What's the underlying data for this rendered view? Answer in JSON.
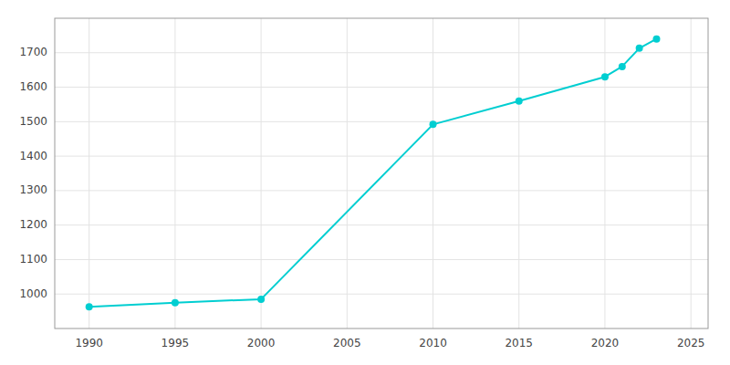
{
  "chart_data": {
    "type": "line",
    "x": [
      1990,
      1995,
      2000,
      2010,
      2015,
      2020,
      2021,
      2022,
      2023
    ],
    "values": [
      963,
      975,
      985,
      1492,
      1560,
      1630,
      1660,
      1713,
      1740
    ],
    "color": "#00CED1",
    "marker": "circle",
    "xlim": [
      1988,
      2026
    ],
    "ylim": [
      900,
      1800
    ],
    "xticks": [
      1990,
      1995,
      2000,
      2005,
      2010,
      2015,
      2020,
      2025
    ],
    "yticks": [
      1000,
      1100,
      1200,
      1300,
      1400,
      1500,
      1600,
      1700
    ],
    "grid": true
  }
}
